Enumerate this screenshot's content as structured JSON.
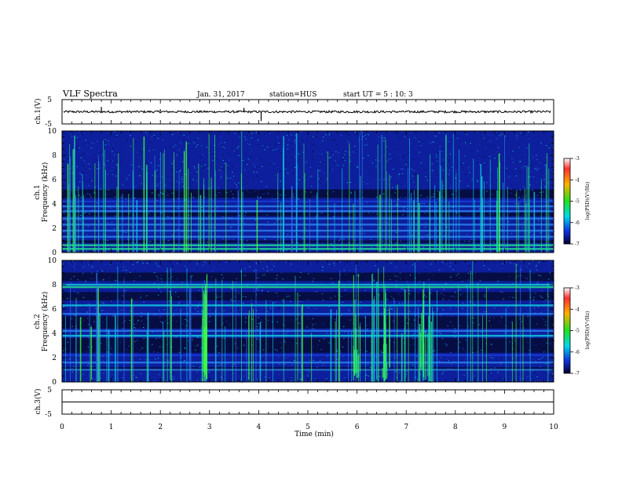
{
  "header": {
    "title": "VLF Spectra",
    "date": "Jan. 31, 2017",
    "station": "station=HUS",
    "start": "start UT = 5 : 10: 3"
  },
  "chart_data": [
    {
      "type": "line",
      "panel": "ch1-waveform",
      "ylabel": "ch.1(V)",
      "ylim": [
        -5,
        5
      ],
      "yticks": [
        "5",
        "-5"
      ],
      "xlim": [
        0,
        10
      ],
      "baseline": 0,
      "spikes": [
        {
          "x": 0.8,
          "y": 2.0
        },
        {
          "x": 2.0,
          "y": 1.0
        },
        {
          "x": 3.7,
          "y": 1.6
        },
        {
          "x": 4.05,
          "y": -3.8
        }
      ]
    },
    {
      "type": "heatmap",
      "panel": "ch1-spectrogram",
      "ylabel_line1": "ch.1",
      "ylabel_line2": "Frequency (kHz)",
      "ylim": [
        0,
        10
      ],
      "yticks": [
        "0",
        "2",
        "4",
        "6",
        "8",
        "10"
      ],
      "xlim": [
        0,
        10
      ],
      "bands": [
        {
          "f": 0.3,
          "level": 0.8
        },
        {
          "f": 0.6,
          "level": 0.85
        },
        {
          "f": 1.3,
          "level": 0.6
        },
        {
          "f": 1.8,
          "level": 0.55
        },
        {
          "f": 2.3,
          "level": 0.6
        },
        {
          "f": 2.8,
          "level": 0.5
        },
        {
          "f": 3.4,
          "level": 0.6
        },
        {
          "f": 3.8,
          "level": 0.55
        },
        {
          "f": 4.2,
          "level": 0.45
        }
      ],
      "colorbar": {
        "ticks": [
          "-3",
          "-4",
          "-5",
          "-6",
          "-7"
        ],
        "label": "log(PSD)(V²/Hz)"
      }
    },
    {
      "type": "heatmap",
      "panel": "ch2-spectrogram",
      "ylabel_line1": "ch.2",
      "ylabel_line2": "Frequency (kHz)",
      "ylim": [
        0,
        10
      ],
      "yticks": [
        "0",
        "2",
        "4",
        "6",
        "8",
        "10"
      ],
      "xlim": [
        0,
        10
      ],
      "bands": [
        {
          "f": 1.0,
          "level": 0.55
        },
        {
          "f": 1.6,
          "level": 0.5
        },
        {
          "f": 2.2,
          "level": 0.45
        },
        {
          "f": 3.8,
          "level": 0.7
        },
        {
          "f": 4.2,
          "level": 0.6
        },
        {
          "f": 5.6,
          "level": 0.5
        },
        {
          "f": 6.3,
          "level": 0.65
        },
        {
          "f": 7.8,
          "level": 0.75
        },
        {
          "f": 8.0,
          "level": 0.7
        }
      ],
      "colorbar": {
        "ticks": [
          "-3",
          "-4",
          "-5",
          "-6",
          "-7"
        ],
        "label": "log(PSD)(V²/Hz)"
      }
    },
    {
      "type": "line",
      "panel": "ch3-waveform",
      "ylabel": "ch.3(V)",
      "ylim": [
        -5,
        5
      ],
      "yticks": [
        "5",
        "-5"
      ],
      "xlim": [
        0,
        10
      ],
      "baseline": 0,
      "xlabel": "Time (min)",
      "xticks": [
        "0",
        "1",
        "2",
        "3",
        "4",
        "5",
        "6",
        "7",
        "8",
        "9",
        "10"
      ]
    }
  ]
}
